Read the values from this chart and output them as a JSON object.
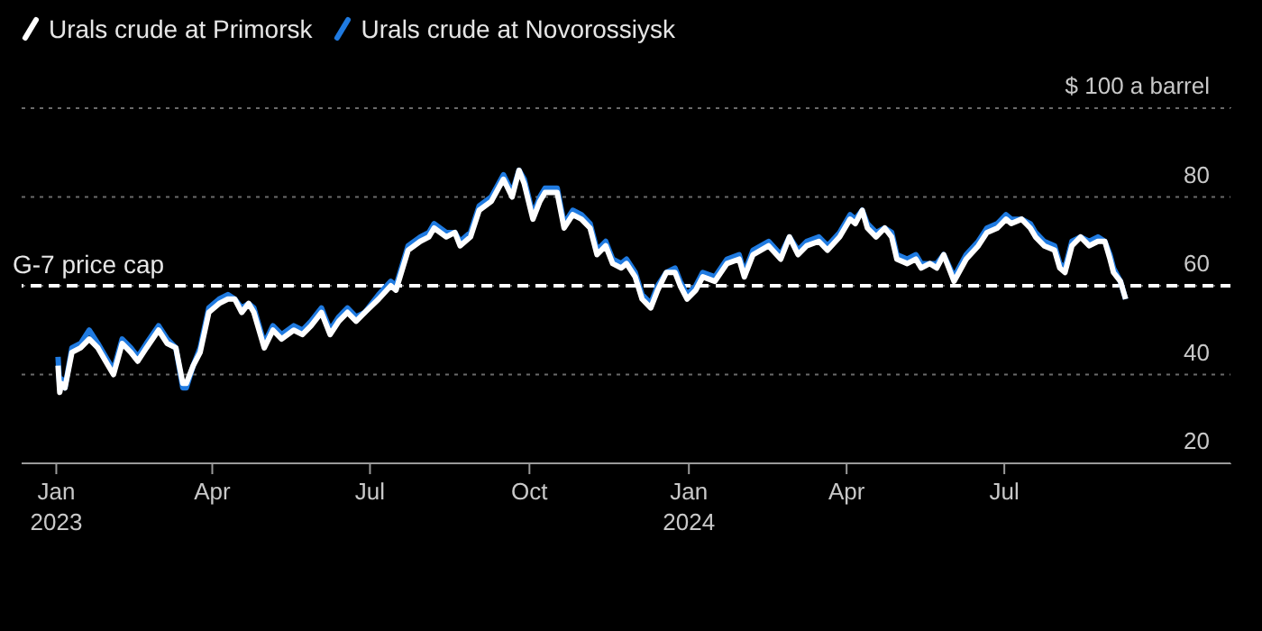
{
  "chart_data": {
    "type": "line",
    "x": [
      "2023-01-02",
      "2023-01-03",
      "2023-01-04",
      "2023-01-06",
      "2023-01-10",
      "2023-01-15",
      "2023-01-20",
      "2023-01-25",
      "2023-01-31",
      "2023-02-03",
      "2023-02-08",
      "2023-02-13",
      "2023-02-17",
      "2023-02-22",
      "2023-03-01",
      "2023-03-06",
      "2023-03-11",
      "2023-03-15",
      "2023-03-17",
      "2023-03-21",
      "2023-03-25",
      "2023-03-30",
      "2023-04-05",
      "2023-04-10",
      "2023-04-14",
      "2023-04-18",
      "2023-04-22",
      "2023-04-25",
      "2023-05-01",
      "2023-05-06",
      "2023-05-11",
      "2023-05-18",
      "2023-05-23",
      "2023-05-28",
      "2023-06-03",
      "2023-06-08",
      "2023-06-13",
      "2023-06-18",
      "2023-06-23",
      "2023-06-28",
      "2023-07-06",
      "2023-07-13",
      "2023-07-16",
      "2023-07-23",
      "2023-07-30",
      "2023-08-04",
      "2023-08-07",
      "2023-08-14",
      "2023-08-19",
      "2023-08-22",
      "2023-08-28",
      "2023-09-02",
      "2023-09-09",
      "2023-09-16",
      "2023-09-21",
      "2023-09-25",
      "2023-09-28",
      "2023-10-03",
      "2023-10-07",
      "2023-10-10",
      "2023-10-17",
      "2023-10-21",
      "2023-10-26",
      "2023-10-31",
      "2023-11-05",
      "2023-11-09",
      "2023-11-14",
      "2023-11-18",
      "2023-11-23",
      "2023-11-26",
      "2023-12-01",
      "2023-12-05",
      "2023-12-10",
      "2023-12-14",
      "2023-12-19",
      "2023-12-24",
      "2023-12-27",
      "2023-12-31",
      "2024-01-05",
      "2024-01-09",
      "2024-01-16",
      "2024-01-23",
      "2024-01-30",
      "2024-02-02",
      "2024-02-07",
      "2024-02-16",
      "2024-02-23",
      "2024-02-28",
      "2024-03-04",
      "2024-03-09",
      "2024-03-16",
      "2024-03-21",
      "2024-03-28",
      "2024-04-03",
      "2024-04-06",
      "2024-04-10",
      "2024-04-13",
      "2024-04-18",
      "2024-04-23",
      "2024-04-27",
      "2024-04-30",
      "2024-05-06",
      "2024-05-11",
      "2024-05-14",
      "2024-05-19",
      "2024-05-23",
      "2024-05-27",
      "2024-06-02",
      "2024-06-09",
      "2024-06-16",
      "2024-06-21",
      "2024-06-27",
      "2024-07-02",
      "2024-07-05",
      "2024-07-11",
      "2024-07-16",
      "2024-07-19",
      "2024-07-24",
      "2024-07-30",
      "2024-08-02",
      "2024-08-05",
      "2024-08-09",
      "2024-08-14",
      "2024-08-19",
      "2024-08-24",
      "2024-08-28",
      "2024-08-31",
      "2024-09-02",
      "2024-09-06",
      "2024-09-09"
    ],
    "series": [
      {
        "name": "Urals crude at Primorsk",
        "color": "#ffffff",
        "values": [
          42,
          36,
          38,
          37,
          45,
          46,
          48,
          46,
          42,
          40,
          47,
          45,
          43,
          46,
          50,
          47,
          46,
          38,
          38,
          42,
          45,
          54,
          56,
          57,
          57,
          54,
          56,
          54,
          46,
          50,
          48,
          50,
          49,
          51,
          54,
          49,
          52,
          54,
          52,
          54,
          57,
          60,
          59,
          68,
          70,
          71,
          73,
          71,
          72,
          69,
          71,
          77,
          79,
          84,
          80,
          86,
          83,
          75,
          79,
          81,
          81,
          73,
          76,
          75,
          73,
          67,
          69,
          65,
          64,
          65,
          62,
          57,
          55,
          59,
          63,
          63,
          60,
          57,
          59,
          62,
          61,
          65,
          66,
          62,
          67,
          69,
          66,
          71,
          67,
          69,
          70,
          68,
          71,
          75,
          74,
          77,
          73,
          71,
          73,
          71,
          66,
          65,
          66,
          64,
          65,
          64,
          67,
          61,
          66,
          69,
          72,
          73,
          75,
          74,
          75,
          73,
          71,
          69,
          68,
          64,
          63,
          69,
          71,
          69,
          70,
          70,
          66,
          63,
          61,
          57
        ]
      },
      {
        "name": "Urals crude at Novorossiysk",
        "color": "#1f7ae0",
        "values": [
          44,
          37,
          39,
          37,
          46,
          47,
          50,
          47,
          43,
          41,
          48,
          46,
          44,
          47,
          51,
          48,
          46,
          37,
          37,
          42,
          46,
          55,
          57,
          58,
          57,
          55,
          56,
          55,
          47,
          51,
          49,
          51,
          50,
          52,
          55,
          50,
          53,
          55,
          53,
          54,
          58,
          61,
          60,
          69,
          71,
          72,
          74,
          72,
          72,
          70,
          72,
          78,
          80,
          85,
          81,
          86,
          84,
          76,
          80,
          82,
          82,
          74,
          77,
          76,
          74,
          68,
          70,
          66,
          65,
          66,
          63,
          58,
          56,
          60,
          63,
          64,
          61,
          58,
          60,
          63,
          62,
          66,
          67,
          63,
          68,
          70,
          67,
          71,
          68,
          70,
          71,
          69,
          72,
          76,
          75,
          77,
          74,
          72,
          73,
          72,
          67,
          66,
          67,
          65,
          65,
          65,
          67,
          62,
          67,
          70,
          73,
          74,
          76,
          75,
          75,
          74,
          72,
          70,
          69,
          65,
          64,
          70,
          71,
          70,
          71,
          70,
          67,
          64,
          61,
          57
        ]
      }
    ],
    "xlim": [
      "2022-12-12",
      "2024-11-09"
    ],
    "xticks": [
      {
        "value": "2023-01-01",
        "label": "Jan\n2023"
      },
      {
        "value": "2023-04-01",
        "label": "Apr"
      },
      {
        "value": "2023-07-01",
        "label": "Jul"
      },
      {
        "value": "2023-10-01",
        "label": "Oct"
      },
      {
        "value": "2024-01-01",
        "label": "Jan\n2024"
      },
      {
        "value": "2024-04-01",
        "label": "Apr"
      },
      {
        "value": "2024-07-01",
        "label": "Jul"
      }
    ],
    "ylim": [
      20,
      100
    ],
    "yticks": [
      20,
      40,
      60,
      80,
      {
        "value": 100,
        "label": "$ 100 a barrel"
      }
    ],
    "grid": "y",
    "legend": "top left",
    "line_style": "solid",
    "ref_lines": [
      {
        "axis": "y",
        "value": 60,
        "label": "G-7 price cap",
        "color": "#ffffff",
        "line_style": "dashed"
      }
    ]
  }
}
